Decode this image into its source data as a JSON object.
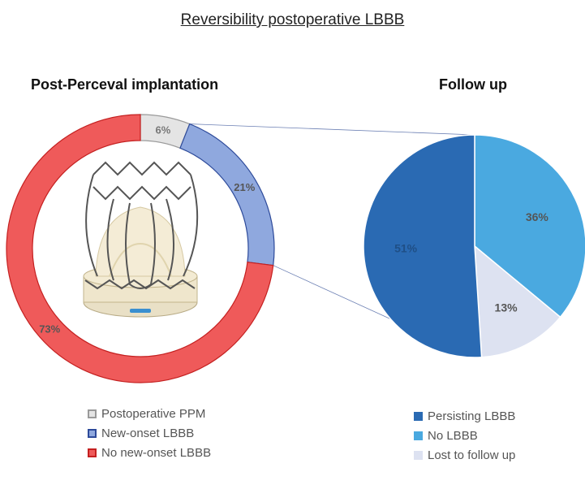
{
  "title": "Reversibility postoperative LBBB",
  "colors": {
    "red": "#ef5a5a",
    "blue_ring": "#8fa8de",
    "grey": "#e4e4e4",
    "dark_blue": "#2a6ab3",
    "light_blue": "#4aa9e0",
    "pale": "#dde2f1"
  },
  "chart_data": [
    {
      "type": "pie",
      "variant": "donut",
      "title": "Post-Perceval implantation",
      "labels": [
        "Postoperative PPM",
        "New-onset LBBB",
        "No new-onset LBBB"
      ],
      "values": [
        6,
        21,
        73
      ],
      "data_labels": [
        "6%",
        "21%",
        "73%"
      ],
      "colors": [
        "#e4e4e4",
        "#8fa8de",
        "#ef5a5a"
      ],
      "legend": "bottom"
    },
    {
      "type": "pie",
      "title": "Follow up",
      "labels": [
        "Persisting LBBB",
        "No LBBB",
        "Lost to follow up"
      ],
      "values": [
        51,
        36,
        13
      ],
      "data_labels": [
        "51%",
        "36%",
        "13%"
      ],
      "colors": [
        "#2a6ab3",
        "#4aa9e0",
        "#dde2f1"
      ],
      "legend": "bottom"
    }
  ],
  "legend_left": [
    {
      "label": "Postoperative PPM",
      "color": "#e4e4e4",
      "border": "#9a9a9a"
    },
    {
      "label": "New-onset LBBB",
      "color": "#8fa8de",
      "border": "#2d4a9a"
    },
    {
      "label": "No new-onset LBBB",
      "color": "#ef5a5a",
      "border": "#c42020"
    }
  ],
  "legend_right": [
    {
      "label": "Persisting LBBB",
      "color": "#2a6ab3"
    },
    {
      "label": "No LBBB",
      "color": "#4aa9e0"
    },
    {
      "label": "Lost to follow up",
      "color": "#dde2f1"
    }
  ]
}
